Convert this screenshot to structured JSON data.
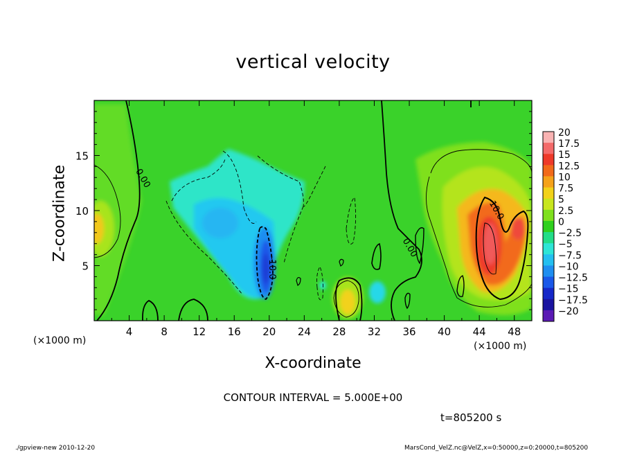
{
  "chart_data": {
    "type": "heatmap",
    "title": "vertical velocity",
    "xlabel": "X-coordinate",
    "ylabel": "Z-coordinate",
    "x_unit": "(×1000 m)",
    "y_unit": "(×1000 m)",
    "xlim": [
      0,
      50
    ],
    "ylim": [
      0,
      20
    ],
    "x_ticks": [
      4,
      8,
      12,
      16,
      20,
      24,
      28,
      32,
      36,
      40,
      44,
      48
    ],
    "y_ticks": [
      5,
      10,
      15
    ],
    "colorbar": {
      "labels": [
        "20",
        "17.5",
        "15",
        "12.5",
        "10",
        "7.5",
        "5",
        "2.5",
        "0",
        "−2.5",
        "−5",
        "−7.5",
        "−10",
        "−12.5",
        "−15",
        "−17.5",
        "−20"
      ],
      "colors": [
        "#f9b3b3",
        "#f46a6a",
        "#ee3a2a",
        "#f26a1a",
        "#f5a21a",
        "#f2d21a",
        "#c8e61e",
        "#7fe01e",
        "#2fd01e",
        "#22dd88",
        "#2ee5d6",
        "#24bff0",
        "#1f8ef0",
        "#1a58e8",
        "#1628c8",
        "#1a14a0",
        "#5a1ab4"
      ]
    },
    "contour_labels": [
      {
        "text": "0.00",
        "x": 5.3,
        "z": 12.8
      },
      {
        "text": "-10.0",
        "x": 20.0,
        "z": 4.8
      },
      {
        "text": "0.00",
        "x": 35.8,
        "z": 6.5
      },
      {
        "text": "10.0",
        "x": 45.7,
        "z": 9.9
      }
    ],
    "features": [
      {
        "kind": "updraft",
        "x": 45,
        "z": 6,
        "peak": 15
      },
      {
        "kind": "updraft",
        "x": 29,
        "z": 1.8,
        "peak": 7.5
      },
      {
        "kind": "updraft",
        "x": 1,
        "z": 8,
        "peak": 7.5
      },
      {
        "kind": "downdraft",
        "x": 19.5,
        "z": 5.5,
        "peak": -12.5
      },
      {
        "kind": "downdraft",
        "x": 16,
        "z": 10,
        "peak": -7.5
      },
      {
        "kind": "downdraft",
        "x": 32,
        "z": 2.5,
        "peak": -5
      }
    ],
    "contour_interval_text": "CONTOUR INTERVAL = 5.000E+00",
    "time_text": "t=805200 s"
  },
  "footer": {
    "left": "./gpview-new  2010-12-20",
    "right": "MarsCond_VelZ.nc@VelZ,x=0:50000,z=0:20000,t=805200"
  }
}
